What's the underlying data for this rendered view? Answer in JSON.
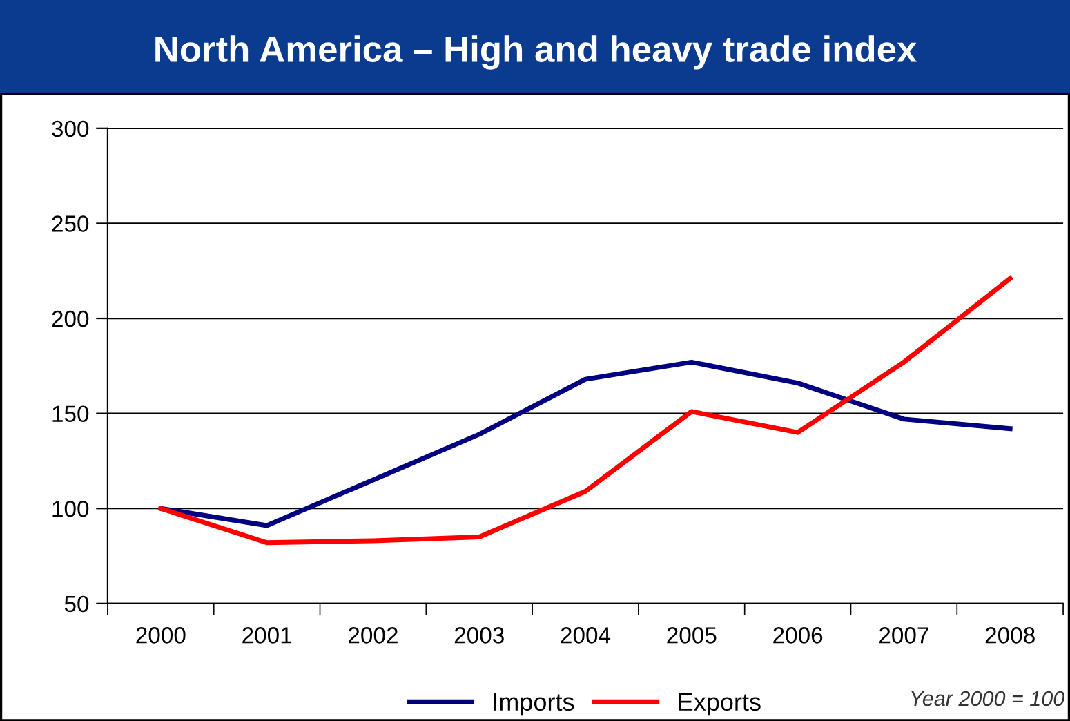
{
  "chart_data": {
    "type": "line",
    "title": "North America – High and heavy trade index",
    "categories": [
      "2000",
      "2001",
      "2002",
      "2003",
      "2004",
      "2005",
      "2006",
      "2007",
      "2008"
    ],
    "series": [
      {
        "name": "Imports",
        "color": "#000080",
        "values": [
          100,
          91,
          115,
          139,
          168,
          177,
          166,
          147,
          142
        ]
      },
      {
        "name": "Exports",
        "color": "#ff0000",
        "values": [
          100,
          82,
          83,
          85,
          109,
          151,
          140,
          177,
          221
        ]
      }
    ],
    "ylim": [
      50,
      300
    ],
    "yticks": [
      50,
      100,
      150,
      200,
      250,
      300
    ],
    "grid": "y",
    "legend": "bottom",
    "marker": "none",
    "line_style": "solid",
    "annotations": [
      "Year 2000 = 100"
    ]
  }
}
